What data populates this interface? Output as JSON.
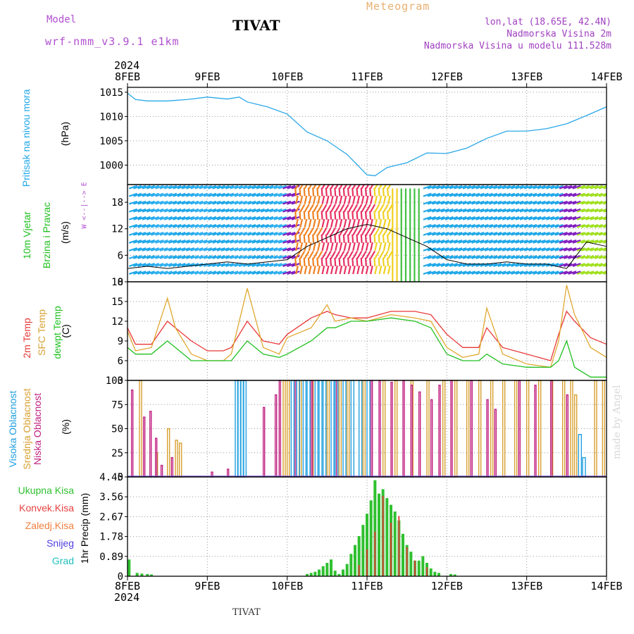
{
  "header": {
    "model_label": "Model",
    "model_name": "wrf-nmm_v3.9.1 e1km",
    "station": "TIVAT",
    "title": "Meteogram",
    "lonlat": "lon,lat (18.65E, 42.4N)",
    "elevation": "Nadmorska Visina 2m",
    "elevation_model": "Nadmorska Visina u modelu 111.528m"
  },
  "footer": {
    "station": "TIVAT",
    "credit": "made by Angel"
  },
  "colors": {
    "pressure": "#2aa8e8",
    "temp2m": "#e83838",
    "sfc": "#e0a830",
    "dewpt": "#20c020",
    "high_cloud": "#20a0e0",
    "mid_cloud": "#d8a030",
    "low_cloud": "#c02080",
    "total_precip": "#30c030",
    "conv_precip": "#e84040"
  },
  "time_axis": {
    "year": "2024",
    "labels": [
      "8FEB",
      "9FEB",
      "10FEB",
      "11FEB",
      "12FEB",
      "13FEB",
      "14FEB"
    ]
  },
  "chart_data": [
    {
      "type": "line",
      "panel": "pressure",
      "ylabel": [
        "Pritisak na nivou mora",
        "(hPa)"
      ],
      "ylim": [
        996,
        1016
      ],
      "yticks": [
        1000,
        1005,
        1010,
        1015
      ],
      "grid": true,
      "x": [
        0,
        0.1,
        0.25,
        0.5,
        0.75,
        1.0,
        1.25,
        1.4,
        1.5,
        1.75,
        2.0,
        2.25,
        2.5,
        2.75,
        3.0,
        3.1,
        3.25,
        3.5,
        3.75,
        4.0,
        4.25,
        4.5,
        4.75,
        5.0,
        5.25,
        5.5,
        5.75,
        6.0
      ],
      "series": [
        {
          "name": "Pritisak na nivou mora",
          "values": [
            1014.8,
            1013.5,
            1013.2,
            1013.2,
            1013.5,
            1014.0,
            1013.6,
            1014.0,
            1013.0,
            1012.0,
            1010.5,
            1006.8,
            1005.0,
            1002.2,
            998.0,
            997.8,
            999.5,
            1000.5,
            1002.5,
            1002.4,
            1003.5,
            1005.5,
            1007.0,
            1007.0,
            1007.5,
            1008.5,
            1010.2,
            1012.0
          ]
        }
      ]
    },
    {
      "type": "line",
      "panel": "wind",
      "ylabel": [
        "10m Vjetar",
        "Brzina i Pravac",
        "(m/s)"
      ],
      "compass": "W <--|--> E",
      "ylim": [
        0,
        22
      ],
      "yticks": [
        0,
        6,
        12,
        18
      ],
      "grid": true,
      "x": [
        0,
        0.25,
        0.5,
        0.75,
        1.0,
        1.25,
        1.5,
        1.75,
        2.0,
        2.25,
        2.5,
        2.75,
        3.0,
        3.25,
        3.5,
        3.75,
        4.0,
        4.25,
        4.5,
        4.75,
        5.0,
        5.25,
        5.5,
        5.75,
        6.0
      ],
      "series": [
        {
          "name": "10m Vjetar",
          "values": [
            3,
            3.5,
            3,
            3.5,
            4,
            4.5,
            4,
            4.5,
            5,
            8,
            10,
            12,
            13,
            12,
            10,
            8,
            5,
            4,
            4,
            4.5,
            4,
            4,
            3,
            9,
            8
          ]
        }
      ]
    },
    {
      "type": "line",
      "panel": "temperature",
      "ylabel": [
        "2m Temp",
        "SFC Temp",
        "dewpt Temp",
        "(C)"
      ],
      "ylim": [
        3,
        18
      ],
      "yticks": [
        3,
        6,
        9,
        12,
        15,
        18
      ],
      "grid": true,
      "x": [
        0,
        0.1,
        0.3,
        0.5,
        0.6,
        0.8,
        1.0,
        1.2,
        1.3,
        1.5,
        1.7,
        1.9,
        2.0,
        2.3,
        2.5,
        2.6,
        2.8,
        3.0,
        3.3,
        3.6,
        3.8,
        4.0,
        4.2,
        4.4,
        4.5,
        4.7,
        5.0,
        5.3,
        5.4,
        5.5,
        5.6,
        5.8,
        6.0
      ],
      "series": [
        {
          "name": "2m Temp",
          "values": [
            11,
            8.5,
            8.5,
            12,
            11,
            9,
            7.5,
            7.5,
            8,
            12,
            9,
            8.5,
            10,
            12.5,
            13.5,
            13,
            12.5,
            12.5,
            13.5,
            13.5,
            13,
            10,
            8,
            8,
            11,
            8,
            7,
            6,
            10,
            13.5,
            12,
            9.5,
            8.5
          ]
        },
        {
          "name": "SFC Temp",
          "values": [
            10.5,
            7.5,
            8,
            15.5,
            11,
            7,
            6,
            6,
            7,
            17,
            8,
            7,
            9.5,
            11,
            14.5,
            12,
            12.5,
            12,
            13,
            12.5,
            12,
            8,
            6.5,
            7,
            14,
            7,
            5.5,
            5,
            9,
            17.5,
            13,
            8,
            6.5
          ]
        },
        {
          "name": "dewpt Temp",
          "values": [
            8,
            7,
            7,
            9,
            8,
            6,
            6,
            6,
            6,
            9,
            7,
            6.5,
            7,
            9,
            11,
            11,
            12,
            12,
            12.5,
            12,
            11,
            7,
            6,
            6,
            7,
            5.5,
            5,
            5,
            6,
            9,
            5,
            3.5,
            3.5
          ]
        }
      ]
    },
    {
      "type": "bar",
      "panel": "clouds",
      "ylabel": [
        "Visoka Oblacnost",
        "Srednja Oblacnost",
        "Niska Oblacnost",
        "(%)"
      ],
      "ylim": [
        0,
        100
      ],
      "yticks": [
        0,
        25,
        50,
        75,
        100
      ],
      "grid": true,
      "series": [
        {
          "name": "Visoka Oblacnost",
          "x": [
            1.35,
            1.38,
            1.42,
            1.45,
            2.05,
            2.12,
            2.2,
            2.25,
            2.35,
            2.4,
            2.45,
            2.55,
            2.6,
            2.7,
            2.8,
            2.9,
            3.0,
            5.65,
            5.7
          ],
          "values": [
            100,
            100,
            100,
            100,
            100,
            100,
            100,
            100,
            100,
            100,
            100,
            100,
            100,
            100,
            100,
            100,
            100,
            44,
            20
          ]
        },
        {
          "name": "Srednja Oblacnost",
          "x": [
            0.15,
            0.35,
            0.5,
            0.6,
            0.65,
            1.95,
            2.0,
            2.15,
            2.3,
            2.5,
            2.65,
            2.75,
            2.95,
            3.2,
            3.35,
            3.55,
            3.75,
            3.95,
            4.1,
            4.25,
            4.4,
            4.55,
            4.7,
            4.85,
            5.0,
            5.15,
            5.3,
            5.45,
            5.55,
            5.6,
            5.85,
            5.95
          ],
          "values": [
            100,
            25,
            50,
            38,
            35,
            100,
            100,
            100,
            100,
            100,
            100,
            100,
            100,
            100,
            100,
            100,
            100,
            100,
            100,
            100,
            100,
            100,
            100,
            100,
            100,
            100,
            100,
            100,
            100,
            85,
            100,
            100
          ]
        },
        {
          "name": "Niska Oblacnost",
          "x": [
            0.05,
            0.2,
            0.28,
            0.35,
            0.42,
            0.55,
            1.05,
            1.25,
            1.7,
            1.85,
            1.9,
            2.1,
            2.3,
            2.6,
            3.05,
            3.15,
            3.3,
            3.45,
            3.55,
            3.65,
            3.8,
            3.9,
            4.05,
            4.3,
            4.5,
            4.6,
            4.9,
            5.1,
            5.3,
            5.5
          ],
          "values": [
            90,
            62,
            68,
            40,
            12,
            20,
            5,
            8,
            72,
            85,
            100,
            100,
            100,
            100,
            100,
            100,
            98,
            100,
            95,
            88,
            80,
            95,
            100,
            100,
            80,
            70,
            100,
            95,
            100,
            85
          ]
        }
      ]
    },
    {
      "type": "bar",
      "panel": "precipitation",
      "ylabel": [
        "1hr Precip (mm)"
      ],
      "legend": [
        "Ukupna Kisa",
        "Konvek.Kisa",
        "Zaledj.Kisa",
        "Snijeg",
        "Grad"
      ],
      "ylim": [
        0,
        4.45
      ],
      "yticks": [
        0,
        0.89,
        1.78,
        2.67,
        3.56,
        4.45
      ],
      "grid": true,
      "series": [
        {
          "name": "Ukupna Kisa",
          "x": [
            0.02,
            0.12,
            0.18,
            0.25,
            0.3,
            2.25,
            2.3,
            2.35,
            2.4,
            2.45,
            2.5,
            2.55,
            2.6,
            2.65,
            2.7,
            2.75,
            2.8,
            2.85,
            2.9,
            2.95,
            3.0,
            3.05,
            3.1,
            3.15,
            3.2,
            3.25,
            3.3,
            3.35,
            3.4,
            3.45,
            3.5,
            3.55,
            3.6,
            3.65,
            3.7,
            3.75,
            3.8,
            3.85,
            3.9,
            4.05,
            4.1
          ],
          "values": [
            0.75,
            0.15,
            0.12,
            0.1,
            0.08,
            0.1,
            0.15,
            0.2,
            0.3,
            0.45,
            0.6,
            0.75,
            0.25,
            0.1,
            0.3,
            0.55,
            1.0,
            1.4,
            1.8,
            2.3,
            2.8,
            3.4,
            4.3,
            3.7,
            3.9,
            3.5,
            3.2,
            2.9,
            2.5,
            1.9,
            1.4,
            1.1,
            0.7,
            0.7,
            0.9,
            0.6,
            0.35,
            0.2,
            0.15,
            0.1,
            0.08
          ]
        },
        {
          "name": "Konvek.Kisa",
          "x": [
            2.9,
            3.0,
            3.1,
            3.2,
            3.3,
            3.4,
            3.5,
            3.6,
            3.75
          ],
          "values": [
            0.5,
            1.2,
            2.0,
            3.6,
            2.4,
            2.7,
            1.3,
            0.7,
            0.4
          ]
        }
      ]
    }
  ]
}
